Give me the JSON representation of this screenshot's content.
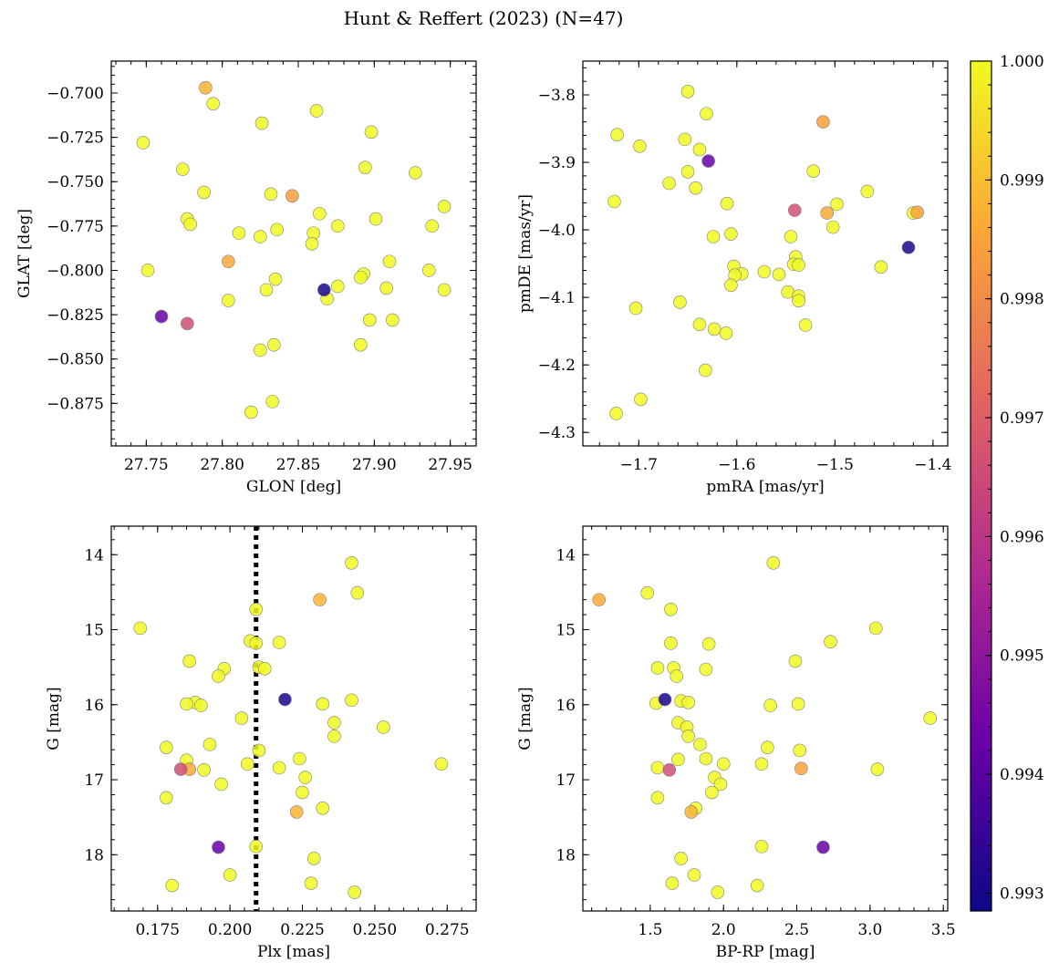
{
  "figure": {
    "title": "Hunt & Reffert (2023) (N=47)"
  },
  "colorbar": {
    "min": 0.99285,
    "max": 1.0,
    "ticks": [
      0.993,
      0.994,
      0.995,
      0.996,
      0.997,
      0.998,
      0.999,
      1.0
    ],
    "tick_labels": [
      "0.993",
      "0.994",
      "0.995",
      "0.996",
      "0.997",
      "0.998",
      "0.999",
      "1.000"
    ],
    "colormap": [
      "#0d0887",
      "#6a00a8",
      "#b12a90",
      "#e16462",
      "#fca636",
      "#f0f921"
    ]
  },
  "chart_data": [
    {
      "type": "scatter",
      "panel": "top-left",
      "xlabel": "GLON [deg]",
      "ylabel": "GLAT [deg]",
      "xlim": [
        27.727,
        27.967
      ],
      "ylim": [
        -0.899,
        -0.682
      ],
      "y_inverted": false,
      "xticks": [
        27.75,
        27.8,
        27.85,
        27.9,
        27.95
      ],
      "xtick_labels": [
        "27.75",
        "27.80",
        "27.85",
        "27.90",
        "27.95"
      ],
      "yticks": [
        -0.7,
        -0.725,
        -0.75,
        -0.775,
        -0.8,
        -0.825,
        -0.85,
        -0.875
      ],
      "ytick_labels": [
        "−0.700",
        "−0.725",
        "−0.750",
        "−0.775",
        "−0.800",
        "−0.825",
        "−0.850",
        "−0.875"
      ],
      "points": [
        {
          "x": 27.789,
          "y": -0.697,
          "c": 0.9988
        },
        {
          "x": 27.794,
          "y": -0.706,
          "c": 1.0
        },
        {
          "x": 27.862,
          "y": -0.71,
          "c": 1.0
        },
        {
          "x": 27.826,
          "y": -0.717,
          "c": 1.0
        },
        {
          "x": 27.898,
          "y": -0.722,
          "c": 1.0
        },
        {
          "x": 27.748,
          "y": -0.728,
          "c": 1.0
        },
        {
          "x": 27.774,
          "y": -0.743,
          "c": 1.0
        },
        {
          "x": 27.894,
          "y": -0.742,
          "c": 1.0
        },
        {
          "x": 27.927,
          "y": -0.745,
          "c": 1.0
        },
        {
          "x": 27.788,
          "y": -0.756,
          "c": 1.0
        },
        {
          "x": 27.832,
          "y": -0.757,
          "c": 1.0
        },
        {
          "x": 27.846,
          "y": -0.758,
          "c": 0.9984
        },
        {
          "x": 27.946,
          "y": -0.764,
          "c": 1.0
        },
        {
          "x": 27.864,
          "y": -0.768,
          "c": 1.0
        },
        {
          "x": 27.777,
          "y": -0.771,
          "c": 1.0
        },
        {
          "x": 27.901,
          "y": -0.771,
          "c": 1.0
        },
        {
          "x": 27.779,
          "y": -0.774,
          "c": 1.0
        },
        {
          "x": 27.876,
          "y": -0.775,
          "c": 1.0
        },
        {
          "x": 27.938,
          "y": -0.775,
          "c": 1.0
        },
        {
          "x": 27.836,
          "y": -0.777,
          "c": 1.0
        },
        {
          "x": 27.811,
          "y": -0.779,
          "c": 1.0
        },
        {
          "x": 27.86,
          "y": -0.779,
          "c": 1.0
        },
        {
          "x": 27.825,
          "y": -0.781,
          "c": 1.0
        },
        {
          "x": 27.859,
          "y": -0.785,
          "c": 1.0
        },
        {
          "x": 27.804,
          "y": -0.795,
          "c": 0.9986
        },
        {
          "x": 27.91,
          "y": -0.795,
          "c": 1.0
        },
        {
          "x": 27.751,
          "y": -0.8,
          "c": 1.0
        },
        {
          "x": 27.936,
          "y": -0.8,
          "c": 1.0
        },
        {
          "x": 27.893,
          "y": -0.802,
          "c": 1.0
        },
        {
          "x": 27.891,
          "y": -0.804,
          "c": 1.0
        },
        {
          "x": 27.835,
          "y": -0.805,
          "c": 1.0
        },
        {
          "x": 27.876,
          "y": -0.809,
          "c": 1.0
        },
        {
          "x": 27.908,
          "y": -0.81,
          "c": 1.0
        },
        {
          "x": 27.946,
          "y": -0.811,
          "c": 1.0
        },
        {
          "x": 27.829,
          "y": -0.811,
          "c": 1.0
        },
        {
          "x": 27.867,
          "y": -0.811,
          "c": 0.993
        },
        {
          "x": 27.804,
          "y": -0.817,
          "c": 1.0
        },
        {
          "x": 27.869,
          "y": -0.816,
          "c": 1.0
        },
        {
          "x": 27.76,
          "y": -0.826,
          "c": 0.9942
        },
        {
          "x": 27.897,
          "y": -0.828,
          "c": 1.0
        },
        {
          "x": 27.912,
          "y": -0.828,
          "c": 1.0
        },
        {
          "x": 27.777,
          "y": -0.83,
          "c": 0.9966
        },
        {
          "x": 27.834,
          "y": -0.842,
          "c": 1.0
        },
        {
          "x": 27.891,
          "y": -0.842,
          "c": 1.0
        },
        {
          "x": 27.825,
          "y": -0.845,
          "c": 1.0
        },
        {
          "x": 27.833,
          "y": -0.874,
          "c": 1.0
        },
        {
          "x": 27.819,
          "y": -0.88,
          "c": 1.0
        }
      ]
    },
    {
      "type": "scatter",
      "panel": "top-right",
      "xlabel": "pmRA [mas/yr]",
      "ylabel": "pmDE [mas/yr]",
      "xlim": [
        -1.757,
        -1.385
      ],
      "ylim": [
        -4.32,
        -3.75
      ],
      "y_inverted": false,
      "xticks": [
        -1.7,
        -1.6,
        -1.5,
        -1.4
      ],
      "xtick_labels": [
        "−1.7",
        "−1.6",
        "−1.5",
        "−1.4"
      ],
      "yticks": [
        -3.8,
        -3.9,
        -4.0,
        -4.1,
        -4.2,
        -4.3
      ],
      "ytick_labels": [
        "−3.8",
        "−3.9",
        "−4.0",
        "−4.1",
        "−4.2",
        "−4.3"
      ],
      "points": [
        {
          "x": -1.65,
          "y": -3.795,
          "c": 1.0
        },
        {
          "x": -1.631,
          "y": -3.828,
          "c": 1.0
        },
        {
          "x": -1.512,
          "y": -3.84,
          "c": 0.9984
        },
        {
          "x": -1.722,
          "y": -3.859,
          "c": 1.0
        },
        {
          "x": -1.653,
          "y": -3.866,
          "c": 1.0
        },
        {
          "x": -1.699,
          "y": -3.876,
          "c": 1.0
        },
        {
          "x": -1.638,
          "y": -3.881,
          "c": 1.0
        },
        {
          "x": -1.629,
          "y": -3.898,
          "c": 0.9942
        },
        {
          "x": -1.65,
          "y": -3.914,
          "c": 1.0
        },
        {
          "x": -1.522,
          "y": -3.913,
          "c": 1.0
        },
        {
          "x": -1.669,
          "y": -3.931,
          "c": 1.0
        },
        {
          "x": -1.642,
          "y": -3.938,
          "c": 1.0
        },
        {
          "x": -1.467,
          "y": -3.943,
          "c": 1.0
        },
        {
          "x": -1.725,
          "y": -3.958,
          "c": 1.0
        },
        {
          "x": -1.61,
          "y": -3.961,
          "c": 1.0
        },
        {
          "x": -1.498,
          "y": -3.962,
          "c": 1.0
        },
        {
          "x": -1.541,
          "y": -3.971,
          "c": 0.9966
        },
        {
          "x": -1.508,
          "y": -3.975,
          "c": 0.9986
        },
        {
          "x": -1.42,
          "y": -3.975,
          "c": 1.0
        },
        {
          "x": -1.416,
          "y": -3.974,
          "c": 0.9985
        },
        {
          "x": -1.502,
          "y": -3.996,
          "c": 1.0
        },
        {
          "x": -1.606,
          "y": -4.006,
          "c": 1.0
        },
        {
          "x": -1.624,
          "y": -4.01,
          "c": 1.0
        },
        {
          "x": -1.545,
          "y": -4.01,
          "c": 1.0
        },
        {
          "x": -1.425,
          "y": -4.026,
          "c": 0.993
        },
        {
          "x": -1.54,
          "y": -4.04,
          "c": 1.0
        },
        {
          "x": -1.542,
          "y": -4.051,
          "c": 1.0
        },
        {
          "x": -1.537,
          "y": -4.052,
          "c": 1.0
        },
        {
          "x": -1.603,
          "y": -4.054,
          "c": 1.0
        },
        {
          "x": -1.453,
          "y": -4.055,
          "c": 1.0
        },
        {
          "x": -1.572,
          "y": -4.062,
          "c": 1.0
        },
        {
          "x": -1.595,
          "y": -4.065,
          "c": 1.0
        },
        {
          "x": -1.602,
          "y": -4.067,
          "c": 1.0
        },
        {
          "x": -1.557,
          "y": -4.066,
          "c": 1.0
        },
        {
          "x": -1.606,
          "y": -4.082,
          "c": 1.0
        },
        {
          "x": -1.548,
          "y": -4.092,
          "c": 1.0
        },
        {
          "x": -1.537,
          "y": -4.098,
          "c": 1.0
        },
        {
          "x": -1.537,
          "y": -4.105,
          "c": 1.0
        },
        {
          "x": -1.658,
          "y": -4.107,
          "c": 1.0
        },
        {
          "x": -1.703,
          "y": -4.116,
          "c": 1.0
        },
        {
          "x": -1.638,
          "y": -4.14,
          "c": 1.0
        },
        {
          "x": -1.53,
          "y": -4.141,
          "c": 1.0
        },
        {
          "x": -1.623,
          "y": -4.147,
          "c": 1.0
        },
        {
          "x": -1.611,
          "y": -4.153,
          "c": 1.0
        },
        {
          "x": -1.632,
          "y": -4.208,
          "c": 1.0
        },
        {
          "x": -1.698,
          "y": -4.251,
          "c": 1.0
        },
        {
          "x": -1.723,
          "y": -4.272,
          "c": 1.0
        }
      ]
    },
    {
      "type": "scatter",
      "panel": "bottom-left",
      "xlabel": "Plx [mas]",
      "ylabel": "G [mag]",
      "xlim": [
        0.159,
        0.285
      ],
      "ylim": [
        18.75,
        13.62
      ],
      "y_inverted": true,
      "xticks": [
        0.175,
        0.2,
        0.225,
        0.25,
        0.275
      ],
      "xtick_labels": [
        "0.175",
        "0.200",
        "0.225",
        "0.250",
        "0.275"
      ],
      "yticks": [
        14,
        15,
        16,
        17,
        18
      ],
      "ytick_labels": [
        "14",
        "15",
        "16",
        "17",
        "18"
      ],
      "vline": 0.209,
      "points": [
        {
          "x": 0.242,
          "y": 14.11,
          "c": 1.0
        },
        {
          "x": 0.244,
          "y": 14.51,
          "c": 1.0
        },
        {
          "x": 0.231,
          "y": 14.6,
          "c": 0.9988
        },
        {
          "x": 0.209,
          "y": 14.73,
          "c": 1.0
        },
        {
          "x": 0.169,
          "y": 14.98,
          "c": 1.0
        },
        {
          "x": 0.207,
          "y": 15.15,
          "c": 1.0
        },
        {
          "x": 0.217,
          "y": 15.17,
          "c": 1.0
        },
        {
          "x": 0.209,
          "y": 15.18,
          "c": 1.0
        },
        {
          "x": 0.186,
          "y": 15.42,
          "c": 1.0
        },
        {
          "x": 0.21,
          "y": 15.5,
          "c": 1.0
        },
        {
          "x": 0.212,
          "y": 15.52,
          "c": 1.0
        },
        {
          "x": 0.198,
          "y": 15.52,
          "c": 1.0
        },
        {
          "x": 0.196,
          "y": 15.62,
          "c": 1.0
        },
        {
          "x": 0.219,
          "y": 15.93,
          "c": 0.993
        },
        {
          "x": 0.242,
          "y": 15.94,
          "c": 1.0
        },
        {
          "x": 0.188,
          "y": 15.97,
          "c": 1.0
        },
        {
          "x": 0.185,
          "y": 15.99,
          "c": 1.0
        },
        {
          "x": 0.232,
          "y": 15.99,
          "c": 1.0
        },
        {
          "x": 0.19,
          "y": 16.01,
          "c": 1.0
        },
        {
          "x": 0.204,
          "y": 16.18,
          "c": 1.0
        },
        {
          "x": 0.236,
          "y": 16.24,
          "c": 1.0
        },
        {
          "x": 0.253,
          "y": 16.3,
          "c": 1.0
        },
        {
          "x": 0.236,
          "y": 16.42,
          "c": 1.0
        },
        {
          "x": 0.193,
          "y": 16.53,
          "c": 1.0
        },
        {
          "x": 0.178,
          "y": 16.57,
          "c": 1.0
        },
        {
          "x": 0.21,
          "y": 16.61,
          "c": 1.0
        },
        {
          "x": 0.224,
          "y": 16.72,
          "c": 1.0
        },
        {
          "x": 0.185,
          "y": 16.74,
          "c": 1.0
        },
        {
          "x": 0.273,
          "y": 16.79,
          "c": 1.0
        },
        {
          "x": 0.206,
          "y": 16.79,
          "c": 1.0
        },
        {
          "x": 0.217,
          "y": 16.84,
          "c": 1.0
        },
        {
          "x": 0.183,
          "y": 16.86,
          "c": 0.9966
        },
        {
          "x": 0.186,
          "y": 16.86,
          "c": 0.9986
        },
        {
          "x": 0.191,
          "y": 16.87,
          "c": 1.0
        },
        {
          "x": 0.226,
          "y": 16.97,
          "c": 1.0
        },
        {
          "x": 0.197,
          "y": 17.06,
          "c": 1.0
        },
        {
          "x": 0.225,
          "y": 17.17,
          "c": 1.0
        },
        {
          "x": 0.178,
          "y": 17.24,
          "c": 1.0
        },
        {
          "x": 0.232,
          "y": 17.38,
          "c": 1.0
        },
        {
          "x": 0.223,
          "y": 17.43,
          "c": 0.9988
        },
        {
          "x": 0.209,
          "y": 17.89,
          "c": 1.0
        },
        {
          "x": 0.196,
          "y": 17.9,
          "c": 0.9942
        },
        {
          "x": 0.229,
          "y": 18.05,
          "c": 1.0
        },
        {
          "x": 0.2,
          "y": 18.27,
          "c": 1.0
        },
        {
          "x": 0.228,
          "y": 18.38,
          "c": 1.0
        },
        {
          "x": 0.18,
          "y": 18.41,
          "c": 1.0
        },
        {
          "x": 0.243,
          "y": 18.5,
          "c": 1.0
        }
      ]
    },
    {
      "type": "scatter",
      "panel": "bottom-right",
      "xlabel": "BP-RP [mag]",
      "ylabel": "G [mag]",
      "xlim": [
        1.04,
        3.53
      ],
      "ylim": [
        18.75,
        13.62
      ],
      "y_inverted": true,
      "xticks": [
        1.5,
        2.0,
        2.5,
        3.0,
        3.5
      ],
      "xtick_labels": [
        "1.5",
        "2.0",
        "2.5",
        "3.0",
        "3.5"
      ],
      "yticks": [
        14,
        15,
        16,
        17,
        18
      ],
      "ytick_labels": [
        "14",
        "15",
        "16",
        "17",
        "18"
      ],
      "points": [
        {
          "x": 2.34,
          "y": 14.11,
          "c": 1.0
        },
        {
          "x": 1.48,
          "y": 14.51,
          "c": 1.0
        },
        {
          "x": 1.15,
          "y": 14.6,
          "c": 0.9986
        },
        {
          "x": 1.64,
          "y": 14.73,
          "c": 1.0
        },
        {
          "x": 3.04,
          "y": 14.98,
          "c": 1.0
        },
        {
          "x": 2.73,
          "y": 15.16,
          "c": 1.0
        },
        {
          "x": 1.64,
          "y": 15.18,
          "c": 1.0
        },
        {
          "x": 1.9,
          "y": 15.19,
          "c": 1.0
        },
        {
          "x": 2.49,
          "y": 15.42,
          "c": 1.0
        },
        {
          "x": 1.55,
          "y": 15.51,
          "c": 1.0
        },
        {
          "x": 1.66,
          "y": 15.51,
          "c": 1.0
        },
        {
          "x": 1.88,
          "y": 15.53,
          "c": 1.0
        },
        {
          "x": 1.68,
          "y": 15.62,
          "c": 1.0
        },
        {
          "x": 1.6,
          "y": 15.93,
          "c": 0.993
        },
        {
          "x": 1.71,
          "y": 15.95,
          "c": 1.0
        },
        {
          "x": 1.76,
          "y": 15.97,
          "c": 1.0
        },
        {
          "x": 1.54,
          "y": 15.98,
          "c": 1.0
        },
        {
          "x": 2.51,
          "y": 15.99,
          "c": 1.0
        },
        {
          "x": 2.32,
          "y": 16.01,
          "c": 1.0
        },
        {
          "x": 3.41,
          "y": 16.18,
          "c": 1.0
        },
        {
          "x": 1.69,
          "y": 16.24,
          "c": 1.0
        },
        {
          "x": 1.75,
          "y": 16.3,
          "c": 1.0
        },
        {
          "x": 1.76,
          "y": 16.42,
          "c": 1.0
        },
        {
          "x": 1.84,
          "y": 16.53,
          "c": 1.0
        },
        {
          "x": 2.3,
          "y": 16.57,
          "c": 1.0
        },
        {
          "x": 2.52,
          "y": 16.61,
          "c": 1.0
        },
        {
          "x": 1.69,
          "y": 16.73,
          "c": 1.0
        },
        {
          "x": 1.88,
          "y": 16.72,
          "c": 1.0
        },
        {
          "x": 2.0,
          "y": 16.79,
          "c": 1.0
        },
        {
          "x": 2.26,
          "y": 16.79,
          "c": 1.0
        },
        {
          "x": 1.55,
          "y": 16.84,
          "c": 1.0
        },
        {
          "x": 2.53,
          "y": 16.85,
          "c": 0.9985
        },
        {
          "x": 1.63,
          "y": 16.87,
          "c": 0.9966
        },
        {
          "x": 3.05,
          "y": 16.86,
          "c": 1.0
        },
        {
          "x": 1.94,
          "y": 16.97,
          "c": 1.0
        },
        {
          "x": 1.98,
          "y": 17.06,
          "c": 1.0
        },
        {
          "x": 1.92,
          "y": 17.17,
          "c": 1.0
        },
        {
          "x": 1.55,
          "y": 17.24,
          "c": 1.0
        },
        {
          "x": 1.81,
          "y": 17.38,
          "c": 1.0
        },
        {
          "x": 1.78,
          "y": 17.43,
          "c": 0.9988
        },
        {
          "x": 2.26,
          "y": 17.89,
          "c": 1.0
        },
        {
          "x": 2.68,
          "y": 17.9,
          "c": 0.9942
        },
        {
          "x": 1.71,
          "y": 18.05,
          "c": 1.0
        },
        {
          "x": 1.8,
          "y": 18.27,
          "c": 1.0
        },
        {
          "x": 1.65,
          "y": 18.38,
          "c": 1.0
        },
        {
          "x": 2.23,
          "y": 18.41,
          "c": 1.0
        },
        {
          "x": 1.96,
          "y": 18.5,
          "c": 1.0
        }
      ]
    }
  ]
}
